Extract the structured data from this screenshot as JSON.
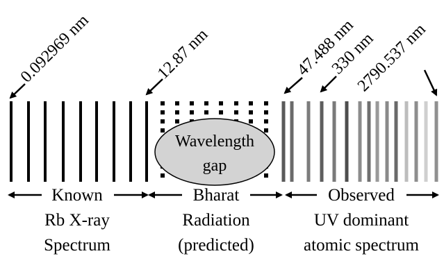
{
  "wavelength_labels": {
    "xray_start": "0.092969 nm",
    "xray_end": "12.87 nm",
    "uv_start": "47.488 nm",
    "uv_mid": "330 nm",
    "uv_end": "2790.537 nm"
  },
  "gap_ellipse": {
    "line1": "Wavelength",
    "line2": "gap"
  },
  "sections": {
    "known": {
      "header": "Known",
      "line2": "Rb X-ray",
      "line3": "Spectrum"
    },
    "bharat": {
      "header": "Bharat",
      "line2": "Radiation",
      "line3": "(predicted)"
    },
    "observed": {
      "header": "Observed",
      "line2": "UV dominant",
      "line3": "atomic spectrum"
    }
  },
  "colors": {
    "line": "#000000",
    "ellipse_fill": "#d3d3d3"
  },
  "uv_line_grays": [
    "#5a5a5a",
    "#6b6b6b",
    "#7c7c7c",
    "#5e5e5e",
    "#7a7a7a",
    "#4e4e4e",
    "#8c8c8c",
    "#707070",
    "#9a9a9a",
    "#8a8a8a",
    "#6a6a6a",
    "#bdbdbd",
    "#8e8e8e",
    "#cfcfcf",
    "#909090"
  ]
}
